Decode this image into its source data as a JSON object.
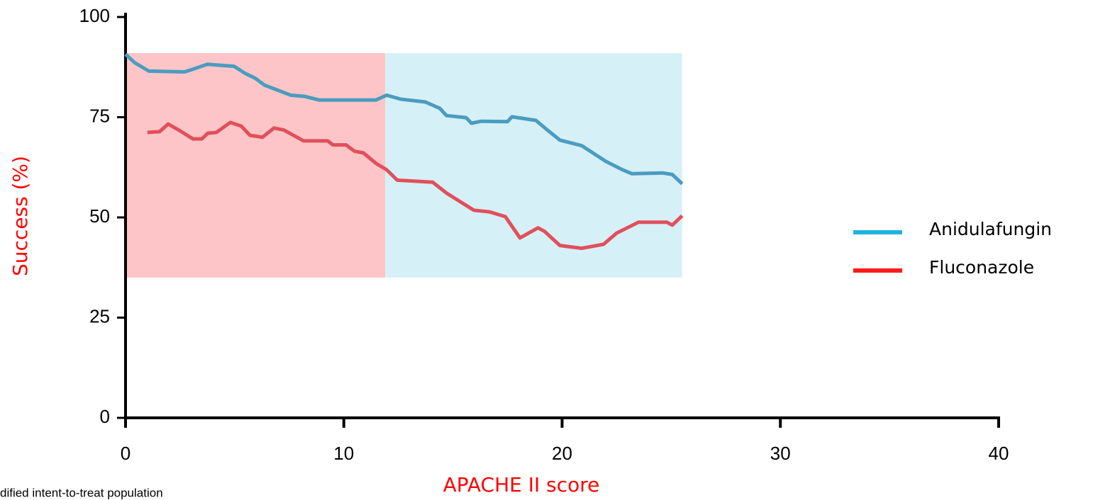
{
  "chart_data": {
    "type": "line",
    "xlabel": "APACHE II score",
    "ylabel": "Success (%)",
    "footnote": "dified intent-to-treat population",
    "xlim": [
      0,
      40
    ],
    "xticks": [
      0,
      10,
      20,
      30,
      40
    ],
    "ylim": [
      0,
      100
    ],
    "yticks": [
      0,
      25,
      50,
      75,
      100
    ],
    "regions": [
      {
        "x": [
          0,
          11.9
        ],
        "y": [
          35,
          91
        ],
        "color": "#fdc5c7"
      },
      {
        "x": [
          11.9,
          25.5
        ],
        "y": [
          35,
          91
        ],
        "color": "#d6f0f7"
      }
    ],
    "series": [
      {
        "name": "Anidulafungin",
        "color": "#1fb4e0",
        "line_color": "#4a9cc0",
        "x": [
          0,
          0.42,
          1.07,
          2.7,
          3.0,
          3.74,
          4.97,
          5.46,
          5.95,
          6.37,
          7.57,
          8.2,
          8.87,
          10.5,
          11.47,
          11.96,
          12.6,
          13.74,
          14.4,
          14.7,
          15.6,
          15.85,
          16.3,
          17.5,
          17.7,
          18.8,
          19.3,
          19.9,
          20.9,
          22.0,
          22.8,
          23.2,
          24.6,
          25.05,
          25.5
        ],
        "values": [
          90.7,
          88.6,
          86.5,
          86.3,
          86.8,
          88.2,
          87.7,
          86.0,
          84.7,
          83.0,
          80.5,
          80.2,
          79.3,
          79.3,
          79.3,
          80.5,
          79.5,
          78.8,
          77.2,
          75.4,
          74.9,
          73.5,
          74.0,
          73.9,
          75.1,
          74.2,
          71.9,
          69.3,
          67.9,
          64.0,
          61.8,
          60.9,
          61.1,
          60.7,
          58.4
        ]
      },
      {
        "name": "Fluconazole",
        "color": "#ff1a1a",
        "line_color": "#e0505c",
        "x": [
          1.0,
          1.56,
          1.95,
          2.5,
          3.09,
          3.5,
          3.77,
          4.16,
          4.8,
          5.3,
          5.7,
          6.27,
          6.8,
          7.25,
          8.16,
          9.26,
          9.5,
          10.1,
          10.5,
          10.9,
          11.47,
          11.96,
          12.45,
          14.07,
          14.7,
          15.95,
          16.67,
          17.4,
          18.07,
          18.9,
          19.2,
          19.9,
          20.9,
          21.9,
          22.5,
          23.5,
          24.8,
          25.05,
          25.5
        ],
        "values": [
          71.2,
          71.4,
          73.3,
          71.6,
          69.6,
          69.6,
          71.0,
          71.2,
          73.7,
          72.8,
          70.5,
          70.0,
          72.3,
          71.8,
          69.1,
          69.1,
          68.1,
          68.1,
          66.5,
          66.1,
          63.5,
          61.9,
          59.3,
          58.8,
          56.1,
          51.8,
          51.4,
          50.2,
          44.9,
          47.4,
          46.5,
          43.0,
          42.3,
          43.3,
          46.1,
          48.8,
          48.8,
          48.1,
          50.4
        ]
      }
    ]
  }
}
